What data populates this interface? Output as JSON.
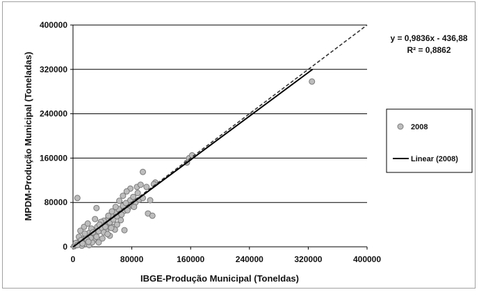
{
  "chart_data": {
    "type": "scatter",
    "xlabel": "IBGE-Produção Municipal (Toneldas)",
    "ylabel": "MPDM-Produção Municipal (Toneladas)",
    "xlim": [
      0,
      400000
    ],
    "ylim": [
      0,
      400000
    ],
    "x_ticks": [
      "0",
      "80000",
      "160000",
      "240000",
      "320000",
      "400000"
    ],
    "y_ticks": [
      "0",
      "80000",
      "160000",
      "240000",
      "320000",
      "400000"
    ],
    "grid": "horizontal",
    "legend_placement": "right",
    "equation": "y = 0,9836x - 436,88",
    "r_squared": "R² = 0,8862",
    "colors": {
      "marker_fill": "#bdbdbd",
      "marker_stroke": "#7a7a7a",
      "trendline": "#000000",
      "identity_line": "#333333",
      "grid": "#000000"
    },
    "series": [
      {
        "name": "2008",
        "kind": "scatter",
        "points": [
          [
            1500,
            1000
          ],
          [
            3000,
            2500
          ],
          [
            5000,
            4000
          ],
          [
            8000,
            9000
          ],
          [
            10000,
            6000
          ],
          [
            12000,
            14000
          ],
          [
            15000,
            11000
          ],
          [
            18000,
            20000
          ],
          [
            20000,
            16000
          ],
          [
            22000,
            25000
          ],
          [
            25000,
            21000
          ],
          [
            28000,
            30000
          ],
          [
            30000,
            24000
          ],
          [
            33000,
            36000
          ],
          [
            35000,
            28000
          ],
          [
            38000,
            42000
          ],
          [
            40000,
            33000
          ],
          [
            42000,
            47000
          ],
          [
            45000,
            38000
          ],
          [
            48000,
            52000
          ],
          [
            50000,
            44000
          ],
          [
            52000,
            58000
          ],
          [
            55000,
            49000
          ],
          [
            58000,
            62000
          ],
          [
            60000,
            55000
          ],
          [
            62000,
            68000
          ],
          [
            65000,
            60000
          ],
          [
            68000,
            74000
          ],
          [
            70000,
            65000
          ],
          [
            72000,
            79000
          ],
          [
            75000,
            70000
          ],
          [
            78000,
            84000
          ],
          [
            80000,
            76000
          ],
          [
            82000,
            90000
          ],
          [
            85000,
            80000
          ],
          [
            88000,
            97000
          ],
          [
            90000,
            85000
          ],
          [
            6000,
            88000
          ],
          [
            32000,
            70000
          ],
          [
            95000,
            135000
          ],
          [
            70000,
            30000
          ],
          [
            78000,
            105000
          ],
          [
            87000,
            108000
          ],
          [
            102000,
            60000
          ],
          [
            105000,
            84000
          ],
          [
            108000,
            56000
          ],
          [
            112000,
            116000
          ],
          [
            25000,
            33000
          ],
          [
            15000,
            36000
          ],
          [
            10000,
            29000
          ],
          [
            20000,
            42000
          ],
          [
            30000,
            50000
          ],
          [
            38000,
            45000
          ],
          [
            45000,
            29000
          ],
          [
            50000,
            20000
          ],
          [
            55000,
            36000
          ],
          [
            60000,
            40000
          ],
          [
            65000,
            48000
          ],
          [
            28000,
            12000
          ],
          [
            35000,
            8000
          ],
          [
            18000,
            5000
          ],
          [
            22000,
            3000
          ],
          [
            12000,
            2000
          ],
          [
            40000,
            15000
          ],
          [
            48000,
            56000
          ],
          [
            53000,
            64000
          ],
          [
            58000,
            72000
          ],
          [
            63000,
            83000
          ],
          [
            68000,
            92000
          ],
          [
            73000,
            100000
          ],
          [
            92000,
            112000
          ],
          [
            100000,
            108000
          ],
          [
            110000,
            113000
          ],
          [
            155000,
            152000
          ],
          [
            158000,
            160000
          ],
          [
            162000,
            165000
          ],
          [
            325000,
            298000
          ],
          [
            14000,
            10000
          ],
          [
            26000,
            8000
          ],
          [
            32000,
            18000
          ],
          [
            42000,
            26000
          ],
          [
            47000,
            23000
          ],
          [
            57000,
            31000
          ],
          [
            8000,
            18000
          ],
          [
            16000,
            24000
          ],
          [
            24000,
            16000
          ],
          [
            36000,
            40000
          ],
          [
            44000,
            36000
          ],
          [
            52000,
            34000
          ],
          [
            66000,
            58000
          ],
          [
            74000,
            66000
          ],
          [
            83000,
            72000
          ],
          [
            95000,
            88000
          ],
          [
            4000,
            7000
          ],
          [
            6000,
            3000
          ],
          [
            11000,
            12000
          ],
          [
            13000,
            6000
          ],
          [
            19000,
            13000
          ],
          [
            21000,
            9000
          ],
          [
            27000,
            26000
          ]
        ]
      },
      {
        "name": "Linear (2008)",
        "kind": "trendline",
        "slope": 0.9836,
        "intercept": -436.88,
        "x_range": [
          0,
          326000
        ]
      },
      {
        "kind": "identity",
        "slope": 1,
        "intercept": 0,
        "x_range": [
          0,
          400000
        ],
        "style": "dashed"
      }
    ],
    "legend": {
      "scatter_label": "2008",
      "line_label": "Linear (2008)"
    }
  }
}
